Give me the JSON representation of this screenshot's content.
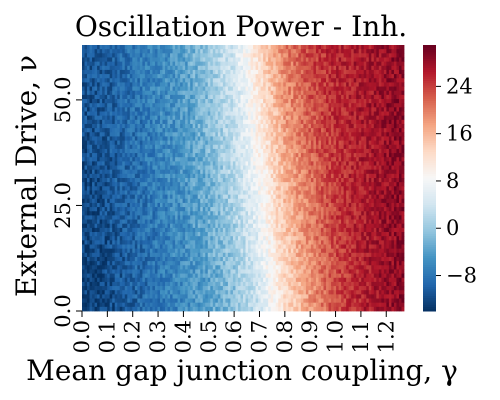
{
  "chart_data": {
    "type": "heatmap",
    "title": "Oscillation Power - Inh.",
    "xlabel": "Mean gap junction coupling, γ",
    "ylabel": "External Drive, ν",
    "x_range": [
      0.0,
      1.27
    ],
    "y_range": [
      0.0,
      63.0
    ],
    "x_tick_labels": [
      "0.0",
      "0.1",
      "0.2",
      "0.3",
      "0.4",
      "0.5",
      "0.6",
      "0.7",
      "0.8",
      "0.9",
      "1.0",
      "1.1",
      "1.2"
    ],
    "x_tick_values": [
      0.0,
      0.1,
      0.2,
      0.3,
      0.4,
      0.5,
      0.6,
      0.7,
      0.8,
      0.9,
      1.0,
      1.1,
      1.2
    ],
    "y_tick_labels": [
      "0.0",
      "25.0",
      "50.0"
    ],
    "y_tick_values": [
      0.0,
      25.0,
      50.0
    ],
    "colorbar": {
      "range": [
        -14,
        31
      ],
      "tick_labels": [
        "−8",
        "0",
        "8",
        "16",
        "24"
      ],
      "tick_values": [
        -8,
        0,
        8,
        16,
        24
      ],
      "colormap": "RdBu_r"
    },
    "value_profile": {
      "description_points_gamma": [
        0.0,
        0.1,
        0.2,
        0.3,
        0.4,
        0.5,
        0.6,
        0.7,
        0.8,
        0.9,
        1.0,
        1.1,
        1.2,
        1.27
      ],
      "power_at_top": [
        -11,
        -10,
        -8,
        -6,
        -4,
        0,
        5,
        13,
        20,
        24,
        26,
        27,
        28,
        29
      ],
      "power_at_bottom": [
        -13,
        -12,
        -10,
        -8,
        -6,
        -4,
        -1,
        4,
        12,
        18,
        23,
        26,
        28,
        29
      ]
    }
  }
}
